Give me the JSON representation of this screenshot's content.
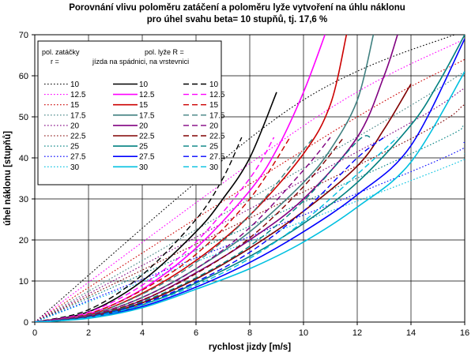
{
  "chart_data": {
    "type": "line",
    "title_lines": [
      "Porovnání vlivu poloměru zatáčení a poloměru lyže vytvoření na úhlu náklonu",
      "pro úhel svahu beta= 10 stupňů, tj. 17,6 %"
    ],
    "xlabel": "rychlost jizdy [m/s]",
    "ylabel": "úhel náklonu [stupňů]",
    "xlim": [
      0,
      16
    ],
    "ylim": [
      0,
      70
    ],
    "xticks": [
      0,
      2,
      4,
      6,
      8,
      10,
      12,
      14,
      16
    ],
    "yticks": [
      0,
      10,
      20,
      30,
      40,
      50,
      60,
      70
    ],
    "grid": true,
    "legend": {
      "placement": "top-left",
      "header_left": [
        "pol. zatáčky",
        "r ="
      ],
      "header_right": [
        "pol. lyže R =",
        "jízda na spádnici, na vrstevnici"
      ],
      "labels": [
        "10",
        "12.5",
        "15",
        "17.5",
        "20",
        "22.5",
        "25",
        "27.5",
        "30"
      ]
    },
    "colors": {
      "10": "#000000",
      "12.5": "#ff00ff",
      "15": "#cc0000",
      "17.5": "#408080",
      "20": "#800080",
      "22.5": "#800000",
      "25": "#008080",
      "27.5": "#0000ff",
      "30": "#00c0e0"
    },
    "series_groups": [
      {
        "style": "dotted",
        "description_col": 0,
        "series": [
          {
            "r": "10",
            "points": [
              [
                0,
                0
              ],
              [
                9.5,
                52
              ],
              [
                16,
                71
              ]
            ]
          },
          {
            "r": "12.5",
            "points": [
              [
                0,
                0
              ],
              [
                10.5,
                50
              ],
              [
                16,
                69
              ]
            ]
          },
          {
            "r": "15",
            "points": [
              [
                0,
                0
              ],
              [
                11.5,
                48
              ],
              [
                16,
                64
              ]
            ]
          },
          {
            "r": "17.5",
            "points": [
              [
                0,
                0
              ],
              [
                12.5,
                47
              ],
              [
                16,
                61
              ]
            ]
          },
          {
            "r": "20",
            "points": [
              [
                0,
                0
              ],
              [
                13,
                45
              ],
              [
                16,
                57
              ]
            ]
          },
          {
            "r": "22.5",
            "points": [
              [
                0,
                0
              ],
              [
                13.5,
                43
              ],
              [
                16,
                53
              ]
            ]
          },
          {
            "r": "25",
            "points": [
              [
                0,
                0
              ],
              [
                14,
                41
              ],
              [
                16,
                48
              ]
            ]
          },
          {
            "r": "27.5",
            "points": [
              [
                0,
                0
              ],
              [
                14.5,
                38
              ],
              [
                16,
                44
              ]
            ]
          },
          {
            "r": "30",
            "points": [
              [
                0,
                0
              ],
              [
                15,
                37
              ],
              [
                16,
                41
              ]
            ]
          }
        ]
      },
      {
        "style": "solid",
        "description_col": 1,
        "series": [
          {
            "r": "10",
            "points": [
              [
                0,
                0
              ],
              [
                2,
                2.5
              ],
              [
                4,
                10
              ],
              [
                6,
                22
              ],
              [
                7,
                30
              ],
              [
                8,
                40
              ],
              [
                9,
                56
              ]
            ]
          },
          {
            "r": "12.5",
            "points": [
              [
                0,
                0
              ],
              [
                2,
                2
              ],
              [
                4,
                8
              ],
              [
                6,
                18
              ],
              [
                8,
                32
              ],
              [
                9,
                42
              ],
              [
                10,
                56
              ],
              [
                10.8,
                70
              ]
            ]
          },
          {
            "r": "15",
            "points": [
              [
                0,
                0
              ],
              [
                2,
                1.7
              ],
              [
                4,
                7
              ],
              [
                6,
                15
              ],
              [
                8,
                26
              ],
              [
                10,
                41
              ],
              [
                11,
                53
              ],
              [
                11.6,
                70
              ]
            ]
          },
          {
            "r": "17.5",
            "points": [
              [
                0,
                0
              ],
              [
                2,
                1.5
              ],
              [
                4,
                6
              ],
              [
                6,
                13
              ],
              [
                8,
                22
              ],
              [
                10,
                34
              ],
              [
                11,
                42
              ],
              [
                12,
                54
              ],
              [
                12.6,
                70
              ]
            ]
          },
          {
            "r": "20",
            "points": [
              [
                0,
                0
              ],
              [
                2,
                1.3
              ],
              [
                4,
                5.3
              ],
              [
                6,
                12
              ],
              [
                8,
                20
              ],
              [
                10,
                30
              ],
              [
                12,
                45
              ],
              [
                13,
                60
              ],
              [
                13.5,
                70
              ]
            ]
          },
          {
            "r": "22.5",
            "points": [
              [
                0,
                0
              ],
              [
                2,
                1.2
              ],
              [
                4,
                4.7
              ],
              [
                6,
                10.5
              ],
              [
                8,
                18
              ],
              [
                10,
                27
              ],
              [
                12,
                38
              ],
              [
                13,
                47
              ],
              [
                14,
                58
              ]
            ]
          },
          {
            "r": "25",
            "points": [
              [
                0,
                0
              ],
              [
                2,
                1.1
              ],
              [
                4,
                4.2
              ],
              [
                6,
                9.5
              ],
              [
                8,
                16
              ],
              [
                10,
                24
              ],
              [
                12,
                34
              ],
              [
                14,
                48
              ],
              [
                15,
                58
              ],
              [
                16,
                70
              ]
            ]
          },
          {
            "r": "27.5",
            "points": [
              [
                0,
                0
              ],
              [
                2,
                1
              ],
              [
                4,
                3.8
              ],
              [
                6,
                8.5
              ],
              [
                8,
                14.5
              ],
              [
                10,
                22
              ],
              [
                12,
                31
              ],
              [
                14,
                43
              ],
              [
                16,
                69
              ]
            ]
          },
          {
            "r": "30",
            "points": [
              [
                0,
                0
              ],
              [
                2,
                0.9
              ],
              [
                4,
                3.5
              ],
              [
                6,
                8
              ],
              [
                8,
                13
              ],
              [
                10,
                19.5
              ],
              [
                12,
                28
              ],
              [
                14,
                39
              ],
              [
                16,
                61
              ]
            ]
          }
        ]
      },
      {
        "style": "dashed",
        "description_col": 2,
        "series": [
          {
            "r": "10",
            "points": [
              [
                0,
                0
              ],
              [
                2,
                3
              ],
              [
                4,
                11.5
              ],
              [
                6,
                25
              ],
              [
                7,
                35
              ],
              [
                7.7,
                45
              ]
            ]
          },
          {
            "r": "12.5",
            "points": [
              [
                0,
                0
              ],
              [
                2,
                2.4
              ],
              [
                4,
                9
              ],
              [
                6,
                19.5
              ],
              [
                8,
                35
              ],
              [
                8.9,
                45
              ]
            ]
          },
          {
            "r": "15",
            "points": [
              [
                0,
                0
              ],
              [
                2,
                2
              ],
              [
                4,
                7.8
              ],
              [
                6,
                16.5
              ],
              [
                8,
                30
              ],
              [
                9.5,
                45
              ]
            ]
          },
          {
            "r": "17.5",
            "points": [
              [
                0,
                0
              ],
              [
                2,
                1.8
              ],
              [
                4,
                6.8
              ],
              [
                6,
                14.5
              ],
              [
                8,
                26
              ],
              [
                10,
                42
              ],
              [
                10.4,
                45
              ]
            ]
          },
          {
            "r": "20",
            "points": [
              [
                0,
                0
              ],
              [
                2,
                1.6
              ],
              [
                4,
                6
              ],
              [
                6,
                13
              ],
              [
                8,
                23
              ],
              [
                10,
                37
              ],
              [
                11,
                45
              ]
            ]
          },
          {
            "r": "22.5",
            "points": [
              [
                0,
                0
              ],
              [
                2,
                1.4
              ],
              [
                4,
                5.4
              ],
              [
                6,
                11.8
              ],
              [
                8,
                20.5
              ],
              [
                10,
                33
              ],
              [
                11.5,
                45
              ]
            ]
          },
          {
            "r": "25",
            "points": [
              [
                0,
                0
              ],
              [
                2,
                1.3
              ],
              [
                4,
                5
              ],
              [
                6,
                10.8
              ],
              [
                8,
                18.5
              ],
              [
                10,
                29.5
              ],
              [
                12,
                44
              ],
              [
                12.5,
                45
              ]
            ]
          },
          {
            "r": "27.5",
            "points": [
              [
                0,
                0
              ],
              [
                2,
                1.2
              ],
              [
                4,
                4.5
              ],
              [
                6,
                9.8
              ],
              [
                8,
                17
              ],
              [
                10,
                27
              ],
              [
                12,
                40
              ],
              [
                13,
                45
              ]
            ]
          },
          {
            "r": "30",
            "points": [
              [
                0,
                0
              ],
              [
                2,
                1.1
              ],
              [
                4,
                4.2
              ],
              [
                6,
                9
              ],
              [
                8,
                15.5
              ],
              [
                10,
                24.5
              ],
              [
                12,
                36
              ],
              [
                13.5,
                45
              ]
            ]
          }
        ]
      }
    ]
  }
}
